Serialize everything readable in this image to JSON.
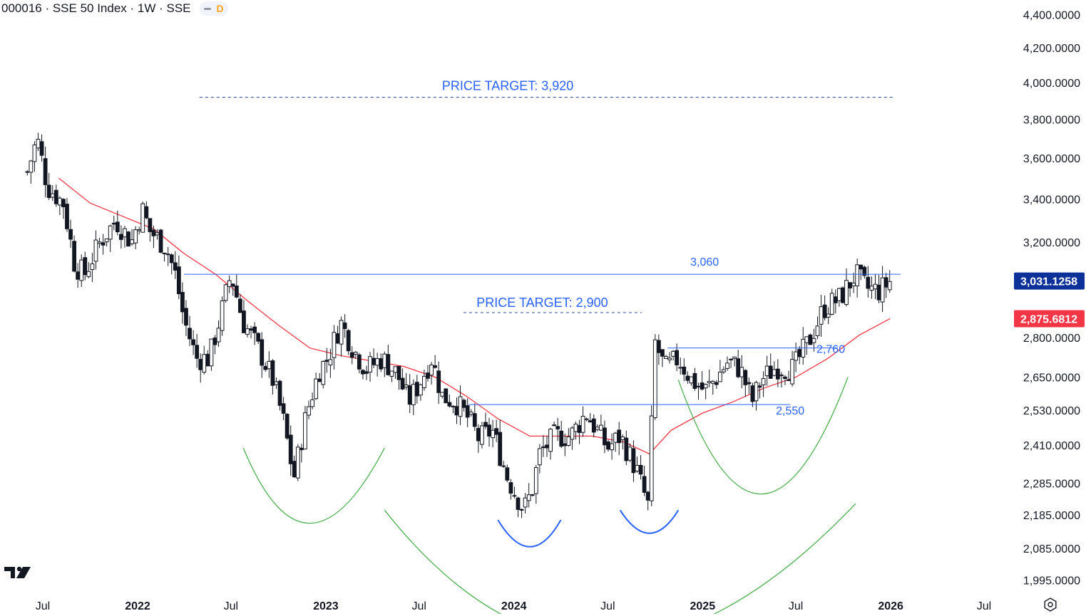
{
  "header": {
    "symbol": "000016 · SSE 50 Index · 1W · SSE",
    "interval_badge": "D"
  },
  "colors": {
    "candle": "#131722",
    "ma": "#f23645",
    "level_line": "#2962ff",
    "arc_green": "#4caf50",
    "arc_blue": "#2962ff",
    "last_price_bg": "#0c3299",
    "ma_price_bg": "#f23645"
  },
  "icons": {
    "logo": "tradingview-logo-icon",
    "settings": "gear-icon"
  },
  "chart_data": {
    "type": "candlestick",
    "title": "000016 · SSE 50 Index · 1W · SSE",
    "y_axis": {
      "scale": "log",
      "range": [
        1950,
        4480
      ],
      "ticks": [
        "4,400.0000",
        "4,200.0000",
        "4,000.0000",
        "3,800.0000",
        "3,600.0000",
        "3,400.0000",
        "3,200.0000",
        "2,800.0000",
        "2,650.0000",
        "2,530.0000",
        "2,410.0000",
        "2,285.0000",
        "2,185.0000",
        "2,085.0000",
        "1,995.0000"
      ]
    },
    "x_axis": {
      "ticks": [
        "Jul",
        "2022",
        "Jul",
        "2023",
        "Jul",
        "2024",
        "Jul",
        "2025",
        "Jul",
        "2026",
        "Jul"
      ],
      "bold_ticks": [
        "2022",
        "2023",
        "2024",
        "2025",
        "2026"
      ]
    },
    "price_labels": {
      "last": {
        "value": 3031.1258,
        "text": "3,031.1258"
      },
      "ma": {
        "value": 2875.6812,
        "text": "2,875.6812"
      }
    },
    "annotations": [
      {
        "text": "PRICE TARGET: 3,920",
        "value": 3920
      },
      {
        "text": "PRICE TARGET: 2,900",
        "value": 2900
      },
      {
        "text": "3,060",
        "value": 3060
      },
      {
        "text": "2,760",
        "value": 2760
      },
      {
        "text": "2,550",
        "value": 2550
      }
    ],
    "close_path": [
      [
        "2021-06-01",
        3530
      ],
      [
        "2021-06-20",
        3700
      ],
      [
        "2021-07-10",
        3460
      ],
      [
        "2021-08-10",
        3380
      ],
      [
        "2021-09-01",
        3100
      ],
      [
        "2021-09-20",
        3060
      ],
      [
        "2021-10-20",
        3200
      ],
      [
        "2021-11-20",
        3300
      ],
      [
        "2021-12-20",
        3200
      ],
      [
        "2022-01-10",
        3350
      ],
      [
        "2022-01-25",
        3250
      ],
      [
        "2022-02-25",
        3180
      ],
      [
        "2022-03-15",
        3060
      ],
      [
        "2022-04-01",
        2870
      ],
      [
        "2022-04-25",
        2720
      ],
      [
        "2022-05-20",
        2720
      ],
      [
        "2022-06-10",
        2880
      ],
      [
        "2022-07-01",
        3060
      ],
      [
        "2022-07-25",
        2860
      ],
      [
        "2022-08-25",
        2750
      ],
      [
        "2022-09-20",
        2640
      ],
      [
        "2022-10-10",
        2500
      ],
      [
        "2022-10-31",
        2300
      ],
      [
        "2022-11-25",
        2520
      ],
      [
        "2022-12-20",
        2680
      ],
      [
        "2023-01-05",
        2720
      ],
      [
        "2023-01-30",
        2860
      ],
      [
        "2023-02-25",
        2750
      ],
      [
        "2023-03-20",
        2680
      ],
      [
        "2023-04-20",
        2720
      ],
      [
        "2023-05-20",
        2660
      ],
      [
        "2023-06-10",
        2560
      ],
      [
        "2023-06-30",
        2620
      ],
      [
        "2023-07-25",
        2720
      ],
      [
        "2023-08-15",
        2580
      ],
      [
        "2023-09-10",
        2560
      ],
      [
        "2023-10-05",
        2500
      ],
      [
        "2023-10-25",
        2430
      ],
      [
        "2023-11-20",
        2460
      ],
      [
        "2023-12-20",
        2300
      ],
      [
        "2024-01-20",
        2200
      ],
      [
        "2024-02-05",
        2260
      ],
      [
        "2024-02-20",
        2380
      ],
      [
        "2024-03-20",
        2440
      ],
      [
        "2024-04-20",
        2440
      ],
      [
        "2024-05-20",
        2520
      ],
      [
        "2024-06-10",
        2460
      ],
      [
        "2024-07-01",
        2400
      ],
      [
        "2024-07-25",
        2440
      ],
      [
        "2024-08-25",
        2330
      ],
      [
        "2024-09-18",
        2210
      ],
      [
        "2024-10-01",
        2780
      ],
      [
        "2024-10-20",
        2680
      ],
      [
        "2024-11-15",
        2720
      ],
      [
        "2024-12-10",
        2640
      ],
      [
        "2025-01-05",
        2600
      ],
      [
        "2025-01-25",
        2640
      ],
      [
        "2025-02-20",
        2710
      ],
      [
        "2025-03-15",
        2680
      ],
      [
        "2025-04-07",
        2560
      ],
      [
        "2025-04-25",
        2640
      ],
      [
        "2025-05-25",
        2690
      ],
      [
        "2025-06-25",
        2680
      ],
      [
        "2025-07-25",
        2780
      ],
      [
        "2025-08-25",
        2920
      ],
      [
        "2025-09-25",
        2960
      ],
      [
        "2025-10-25",
        3060
      ],
      [
        "2025-11-15",
        3000
      ],
      [
        "2025-12-10",
        2990
      ],
      [
        "2025-12-31",
        3031
      ]
    ],
    "ma_path": [
      [
        "2021-08-01",
        3500
      ],
      [
        "2021-10-01",
        3380
      ],
      [
        "2021-12-01",
        3320
      ],
      [
        "2022-02-01",
        3260
      ],
      [
        "2022-04-01",
        3150
      ],
      [
        "2022-06-01",
        3060
      ],
      [
        "2022-08-01",
        2950
      ],
      [
        "2022-10-01",
        2850
      ],
      [
        "2022-12-01",
        2760
      ],
      [
        "2023-02-01",
        2730
      ],
      [
        "2023-04-01",
        2710
      ],
      [
        "2023-06-01",
        2690
      ],
      [
        "2023-08-01",
        2650
      ],
      [
        "2023-10-01",
        2580
      ],
      [
        "2023-12-01",
        2500
      ],
      [
        "2024-02-01",
        2440
      ],
      [
        "2024-04-01",
        2440
      ],
      [
        "2024-06-01",
        2440
      ],
      [
        "2024-08-01",
        2420
      ],
      [
        "2024-09-20",
        2380
      ],
      [
        "2024-11-01",
        2460
      ],
      [
        "2025-01-01",
        2520
      ],
      [
        "2025-03-01",
        2560
      ],
      [
        "2025-05-01",
        2610
      ],
      [
        "2025-07-01",
        2650
      ],
      [
        "2025-09-01",
        2720
      ],
      [
        "2025-11-01",
        2810
      ],
      [
        "2025-12-31",
        2876
      ]
    ],
    "levels": [
      {
        "value": 3920,
        "from": "2022-05-01",
        "to": "2026-01-10",
        "style": "dashed"
      },
      {
        "value": 2900,
        "from": "2023-09-25",
        "to": "2024-09-05",
        "style": "dashed"
      },
      {
        "value": 3060,
        "from": "2022-04-01",
        "to": "2026-01-20",
        "style": "solid"
      },
      {
        "value": 2760,
        "from": "2024-10-25",
        "to": "2025-09-20",
        "style": "solid"
      },
      {
        "value": 2550,
        "from": "2023-10-05",
        "to": "2025-06-20",
        "style": "solid"
      }
    ],
    "arcs": [
      {
        "color": "green",
        "from": [
          "2022-07-25",
          2400
        ],
        "mid": [
          "2022-12-01",
          2160
        ],
        "to": [
          "2023-04-25",
          2400
        ]
      },
      {
        "color": "green",
        "from": [
          "2023-04-25",
          2200
        ],
        "mid": [
          "2024-07-01",
          1830
        ],
        "to": [
          "2025-10-25",
          2220
        ]
      },
      {
        "color": "blue",
        "from": [
          "2023-12-01",
          2170
        ],
        "mid": [
          "2024-02-01",
          2090
        ],
        "to": [
          "2024-04-01",
          2170
        ]
      },
      {
        "color": "blue",
        "from": [
          "2024-07-25",
          2200
        ],
        "mid": [
          "2024-09-20",
          2130
        ],
        "to": [
          "2024-11-15",
          2200
        ]
      },
      {
        "color": "green",
        "from": [
          "2024-11-15",
          2640
        ],
        "mid": [
          "2025-04-25",
          2250
        ],
        "to": [
          "2025-10-10",
          2650
        ]
      }
    ]
  }
}
